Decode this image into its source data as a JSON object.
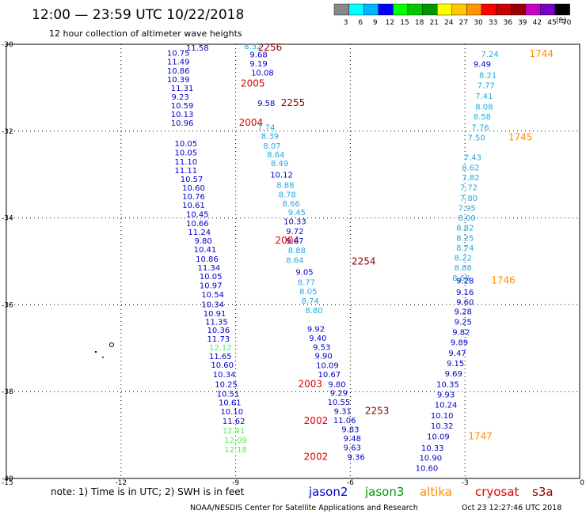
{
  "chart_data": {
    "type": "scatter",
    "title": "12:00 — 23:59 UTC 10/22/2018",
    "subtitle": "12 hour collection of altimeter wave heights",
    "xlim": [
      -15,
      0
    ],
    "ylim": [
      -40,
      -30
    ],
    "x_ticks": [
      -15,
      -12,
      -9,
      -6,
      -3,
      0
    ],
    "y_ticks": [
      -30,
      -32,
      -34,
      -36,
      -38,
      -40
    ],
    "grid": true,
    "colorbar": {
      "labels": [
        "3",
        "6",
        "9",
        "12",
        "15",
        "18",
        "21",
        "24",
        "27",
        "30",
        "33",
        "36",
        "39",
        "42",
        "45",
        "70"
      ],
      "unit": "(ft)",
      "colors": [
        "#888888",
        "#00ffff",
        "#00b4ff",
        "#0000ff",
        "#00ff00",
        "#00c800",
        "#009600",
        "#ffff00",
        "#ffc800",
        "#ff9600",
        "#ff0000",
        "#c80000",
        "#960000",
        "#c800c8",
        "#7800c8",
        "#000000"
      ]
    },
    "colors": {
      "jason2": "#0000cc",
      "jason3": "#009900",
      "altika": "#ff8c00",
      "cryosat": "#dd0000",
      "s3a": "#880000",
      "light_blue": "#22aadd",
      "light_green": "#55ee55"
    },
    "series": [
      {
        "name": "jason2",
        "color": "#0000cc",
        "points": [
          {
            "x": -10.0,
            "y": -30.07,
            "label": "11.58"
          },
          {
            "x": -10.5,
            "y": -30.19,
            "label": "10.75"
          },
          {
            "x": -10.5,
            "y": -30.39,
            "label": "11.49"
          },
          {
            "x": -10.5,
            "y": -30.6,
            "label": "10.86"
          },
          {
            "x": -10.5,
            "y": -30.8,
            "label": "10.39"
          },
          {
            "x": -10.4,
            "y": -31.0,
            "label": "11.31"
          },
          {
            "x": -10.45,
            "y": -31.2,
            "label": "9.23"
          },
          {
            "x": -10.4,
            "y": -31.4,
            "label": "10.59"
          },
          {
            "x": -10.4,
            "y": -31.6,
            "label": "10.13"
          },
          {
            "x": -10.4,
            "y": -31.8,
            "label": "10.96"
          },
          {
            "x": -10.3,
            "y": -32.28,
            "label": "10.05"
          },
          {
            "x": -10.3,
            "y": -32.49,
            "label": "10.05"
          },
          {
            "x": -10.3,
            "y": -32.7,
            "label": "11.10"
          },
          {
            "x": -10.3,
            "y": -32.9,
            "label": "11.11"
          },
          {
            "x": -10.15,
            "y": -33.1,
            "label": "10.57"
          },
          {
            "x": -10.1,
            "y": -33.3,
            "label": "10.60"
          },
          {
            "x": -10.1,
            "y": -33.5,
            "label": "10.76"
          },
          {
            "x": -10.1,
            "y": -33.7,
            "label": "10.61"
          },
          {
            "x": -10.0,
            "y": -33.91,
            "label": "10.45"
          },
          {
            "x": -10.0,
            "y": -34.12,
            "label": "10.66"
          },
          {
            "x": -9.95,
            "y": -34.32,
            "label": "11.24"
          },
          {
            "x": -9.85,
            "y": -34.52,
            "label": "9.80"
          },
          {
            "x": -9.8,
            "y": -34.72,
            "label": "10.41"
          },
          {
            "x": -9.75,
            "y": -34.94,
            "label": "10.86"
          },
          {
            "x": -9.7,
            "y": -35.14,
            "label": "11.34"
          },
          {
            "x": -9.65,
            "y": -35.34,
            "label": "10.05"
          },
          {
            "x": -9.65,
            "y": -35.55,
            "label": "10.97"
          },
          {
            "x": -9.6,
            "y": -35.76,
            "label": "10.54"
          },
          {
            "x": -9.6,
            "y": -35.98,
            "label": "10.34"
          },
          {
            "x": -9.55,
            "y": -36.19,
            "label": "10.91"
          },
          {
            "x": -9.5,
            "y": -36.38,
            "label": "11.35"
          },
          {
            "x": -9.45,
            "y": -36.58,
            "label": "10.36"
          },
          {
            "x": -9.45,
            "y": -36.78,
            "label": "11.73"
          },
          {
            "x": -9.4,
            "y": -37.18,
            "label": "11.65"
          },
          {
            "x": -9.35,
            "y": -37.38,
            "label": "10.60"
          },
          {
            "x": -9.3,
            "y": -37.6,
            "label": "10.34"
          },
          {
            "x": -9.25,
            "y": -37.82,
            "label": "10.25"
          },
          {
            "x": -9.2,
            "y": -38.04,
            "label": "10.51"
          },
          {
            "x": -9.15,
            "y": -38.24,
            "label": "10.61"
          },
          {
            "x": -9.1,
            "y": -38.45,
            "label": "10.10"
          },
          {
            "x": -9.05,
            "y": -38.67,
            "label": "11.62"
          },
          {
            "x": -8.4,
            "y": -30.23,
            "label": "9.68"
          },
          {
            "x": -8.4,
            "y": -30.44,
            "label": "9.19"
          },
          {
            "x": -8.3,
            "y": -30.65,
            "label": "10.08"
          },
          {
            "x": -8.2,
            "y": -31.35,
            "label": "9.58"
          },
          {
            "x": -7.8,
            "y": -33.0,
            "label": "10.12"
          },
          {
            "x": -7.45,
            "y": -34.07,
            "label": "10.33"
          },
          {
            "x": -7.45,
            "y": -34.3,
            "label": "9.72"
          },
          {
            "x": -7.45,
            "y": -34.52,
            "label": "9.67"
          },
          {
            "x": -7.2,
            "y": -35.24,
            "label": "9.05"
          },
          {
            "x": -6.9,
            "y": -36.55,
            "label": "9.92"
          },
          {
            "x": -6.85,
            "y": -36.76,
            "label": "9.40"
          },
          {
            "x": -6.75,
            "y": -36.97,
            "label": "9.53"
          },
          {
            "x": -6.7,
            "y": -37.17,
            "label": "9.90"
          },
          {
            "x": -6.6,
            "y": -37.39,
            "label": "10.09"
          },
          {
            "x": -6.55,
            "y": -37.6,
            "label": "10.67"
          },
          {
            "x": -6.35,
            "y": -37.82,
            "label": "9.80"
          },
          {
            "x": -6.3,
            "y": -38.02,
            "label": "9.29"
          },
          {
            "x": -6.3,
            "y": -38.23,
            "label": "10.55"
          },
          {
            "x": -6.2,
            "y": -38.44,
            "label": "9.31"
          },
          {
            "x": -6.15,
            "y": -38.65,
            "label": "11.06"
          },
          {
            "x": -6.0,
            "y": -38.86,
            "label": "9.83"
          },
          {
            "x": -5.95,
            "y": -39.07,
            "label": "9.48"
          },
          {
            "x": -5.95,
            "y": -39.28,
            "label": "9.63"
          },
          {
            "x": -5.85,
            "y": -39.5,
            "label": "9.36"
          },
          {
            "x": -2.55,
            "y": -30.45,
            "label": "9.49"
          },
          {
            "x": -3.0,
            "y": -35.44,
            "label": "9.28"
          },
          {
            "x": -3.0,
            "y": -35.7,
            "label": "9.16"
          },
          {
            "x": -3.0,
            "y": -35.93,
            "label": "9.60"
          },
          {
            "x": -3.05,
            "y": -36.15,
            "label": "9.28"
          },
          {
            "x": -3.05,
            "y": -36.38,
            "label": "9.25"
          },
          {
            "x": -3.1,
            "y": -36.62,
            "label": "9.82"
          },
          {
            "x": -3.15,
            "y": -36.86,
            "label": "9.89"
          },
          {
            "x": -3.2,
            "y": -37.1,
            "label": "9.47"
          },
          {
            "x": -3.25,
            "y": -37.34,
            "label": "9.15"
          },
          {
            "x": -3.3,
            "y": -37.58,
            "label": "9.69"
          },
          {
            "x": -3.45,
            "y": -37.82,
            "label": "10.35"
          },
          {
            "x": -3.5,
            "y": -38.06,
            "label": "9.93"
          },
          {
            "x": -3.5,
            "y": -38.3,
            "label": "10.24"
          },
          {
            "x": -3.6,
            "y": -38.54,
            "label": "10.10"
          },
          {
            "x": -3.6,
            "y": -38.78,
            "label": "10.32"
          },
          {
            "x": -3.7,
            "y": -39.03,
            "label": "10.09"
          },
          {
            "x": -3.85,
            "y": -39.29,
            "label": "10.33"
          },
          {
            "x": -3.9,
            "y": -39.52,
            "label": "10.90"
          },
          {
            "x": -4.0,
            "y": -39.75,
            "label": "10.60"
          }
        ]
      },
      {
        "name": "light-blue",
        "color": "#22aadd",
        "points": [
          {
            "x": -8.55,
            "y": -30.04,
            "label": "8.32"
          },
          {
            "x": -8.2,
            "y": -31.9,
            "label": "7.74"
          },
          {
            "x": -8.1,
            "y": -32.1,
            "label": "8.39"
          },
          {
            "x": -8.05,
            "y": -32.33,
            "label": "8.07"
          },
          {
            "x": -7.95,
            "y": -32.53,
            "label": "8.64"
          },
          {
            "x": -7.85,
            "y": -32.73,
            "label": "8.49"
          },
          {
            "x": -7.7,
            "y": -33.23,
            "label": "8.88"
          },
          {
            "x": -7.65,
            "y": -33.45,
            "label": "8.78"
          },
          {
            "x": -7.55,
            "y": -33.66,
            "label": "8.66"
          },
          {
            "x": -7.4,
            "y": -33.86,
            "label": "9.45"
          },
          {
            "x": -7.4,
            "y": -34.74,
            "label": "8.88"
          },
          {
            "x": -7.45,
            "y": -34.96,
            "label": "8.64"
          },
          {
            "x": -7.15,
            "y": -35.47,
            "label": "8.77"
          },
          {
            "x": -7.1,
            "y": -35.68,
            "label": "8.05"
          },
          {
            "x": -7.05,
            "y": -35.9,
            "label": "8.74"
          },
          {
            "x": -6.95,
            "y": -36.12,
            "label": "8.80"
          },
          {
            "x": -2.35,
            "y": -30.22,
            "label": "7.24"
          },
          {
            "x": -2.4,
            "y": -30.7,
            "label": "8.21"
          },
          {
            "x": -2.45,
            "y": -30.94,
            "label": "7.77"
          },
          {
            "x": -2.5,
            "y": -31.18,
            "label": "7.41"
          },
          {
            "x": -2.5,
            "y": -31.43,
            "label": "8.08"
          },
          {
            "x": -2.55,
            "y": -31.66,
            "label": "8.58"
          },
          {
            "x": -2.6,
            "y": -31.9,
            "label": "7.76"
          },
          {
            "x": -2.7,
            "y": -32.14,
            "label": "7.50"
          },
          {
            "x": -2.8,
            "y": -32.6,
            "label": "7.43"
          },
          {
            "x": -2.85,
            "y": -32.83,
            "label": "8.62"
          },
          {
            "x": -2.85,
            "y": -33.06,
            "label": "7.82"
          },
          {
            "x": -2.9,
            "y": -33.29,
            "label": "7.72"
          },
          {
            "x": -2.9,
            "y": -33.53,
            "label": "7.80"
          },
          {
            "x": -2.95,
            "y": -33.76,
            "label": "7.95"
          },
          {
            "x": -2.95,
            "y": -33.99,
            "label": "8.00"
          },
          {
            "x": -3.0,
            "y": -34.22,
            "label": "8.82"
          },
          {
            "x": -3.0,
            "y": -34.45,
            "label": "8.25"
          },
          {
            "x": -3.0,
            "y": -34.68,
            "label": "8.74"
          },
          {
            "x": -3.05,
            "y": -34.91,
            "label": "8.22"
          },
          {
            "x": -3.05,
            "y": -35.14,
            "label": "8.88"
          },
          {
            "x": -3.1,
            "y": -35.37,
            "label": "8.68"
          }
        ]
      },
      {
        "name": "light-green",
        "color": "#55ee55",
        "points": [
          {
            "x": -9.4,
            "y": -36.98,
            "label": "12.12"
          },
          {
            "x": -9.05,
            "y": -38.89,
            "label": "12.41"
          },
          {
            "x": -9.0,
            "y": -39.11,
            "label": "12.09"
          },
          {
            "x": -9.0,
            "y": -39.33,
            "label": "12.18"
          }
        ]
      }
    ],
    "pass_labels": [
      {
        "text": "2256",
        "color": "#880000",
        "x": -8.1,
        "y": -30.07
      },
      {
        "text": "2005",
        "color": "#dd0000",
        "x": -8.55,
        "y": -30.9
      },
      {
        "text": "2255",
        "color": "#880000",
        "x": -7.5,
        "y": -31.35
      },
      {
        "text": "2004",
        "color": "#dd0000",
        "x": -8.6,
        "y": -31.8
      },
      {
        "text": "2004",
        "color": "#dd0000",
        "x": -7.65,
        "y": -34.52
      },
      {
        "text": "2254",
        "color": "#880000",
        "x": -5.65,
        "y": -35.0
      },
      {
        "text": "2003",
        "color": "#dd0000",
        "x": -7.05,
        "y": -37.82
      },
      {
        "text": "2253",
        "color": "#880000",
        "x": -5.3,
        "y": -38.44
      },
      {
        "text": "2002",
        "color": "#dd0000",
        "x": -6.9,
        "y": -38.67
      },
      {
        "text": "2002",
        "color": "#dd0000",
        "x": -6.9,
        "y": -39.5
      },
      {
        "text": "1744",
        "color": "#ff8c00",
        "x": -1.0,
        "y": -30.22
      },
      {
        "text": "1745",
        "color": "#ff8c00",
        "x": -1.55,
        "y": -32.14
      },
      {
        "text": "1746",
        "color": "#ff8c00",
        "x": -2.0,
        "y": -35.44
      },
      {
        "text": "1747",
        "color": "#ff8c00",
        "x": -2.6,
        "y": -39.03
      }
    ]
  },
  "note": "note: 1) Time is in UTC; 2) SWH is in feet",
  "legend": [
    {
      "name": "jason2",
      "color": "#0000cc"
    },
    {
      "name": "jason3",
      "color": "#009900"
    },
    {
      "name": "altika",
      "color": "#ff8c00"
    },
    {
      "name": "cryosat",
      "color": "#dd0000"
    },
    {
      "name": "s3a",
      "color": "#880000"
    }
  ],
  "footer_left": "NOAA/NESDIS Center for Satellite Applications and Research",
  "footer_right": "Oct 23 12:27:46 UTC 2018"
}
